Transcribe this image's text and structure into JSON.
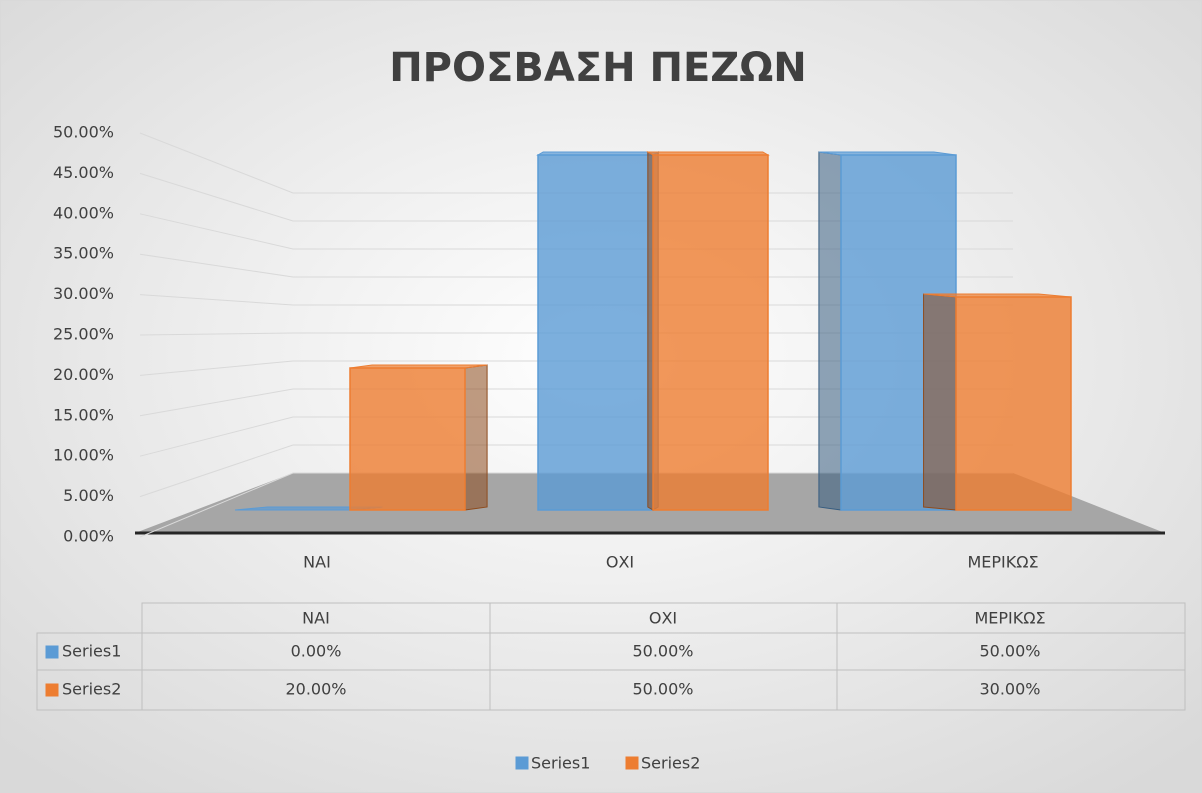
{
  "chart_data": {
    "type": "bar3d",
    "title": "ΠΡΟΣΒΑΣΗ ΠΕΖΩΝ",
    "categories": [
      "ΝΑΙ",
      "ΟΧΙ",
      "ΜΕΡΙΚΩΣ"
    ],
    "series": [
      {
        "name": "Series1",
        "color": "#5b9bd5",
        "values": [
          0,
          50,
          50
        ],
        "value_labels": [
          "0.00%",
          "50.00%",
          "50.00%"
        ]
      },
      {
        "name": "Series2",
        "color": "#ed7d31",
        "values": [
          20,
          50,
          30
        ],
        "value_labels": [
          "20.00%",
          "50.00%",
          "30.00%"
        ]
      }
    ],
    "ylim": [
      0,
      50
    ],
    "yticks": [
      {
        "value": 0,
        "label": "0.00%"
      },
      {
        "value": 5,
        "label": "5.00%"
      },
      {
        "value": 10,
        "label": "10.00%"
      },
      {
        "value": 15,
        "label": "15.00%"
      },
      {
        "value": 20,
        "label": "20.00%"
      },
      {
        "value": 25,
        "label": "25.00%"
      },
      {
        "value": 30,
        "label": "30.00%"
      },
      {
        "value": 35,
        "label": "35.00%"
      },
      {
        "value": 40,
        "label": "40.00%"
      },
      {
        "value": 45,
        "label": "45.00%"
      },
      {
        "value": 50,
        "label": "50.00%"
      }
    ],
    "grid": true,
    "legend": "bottom"
  }
}
